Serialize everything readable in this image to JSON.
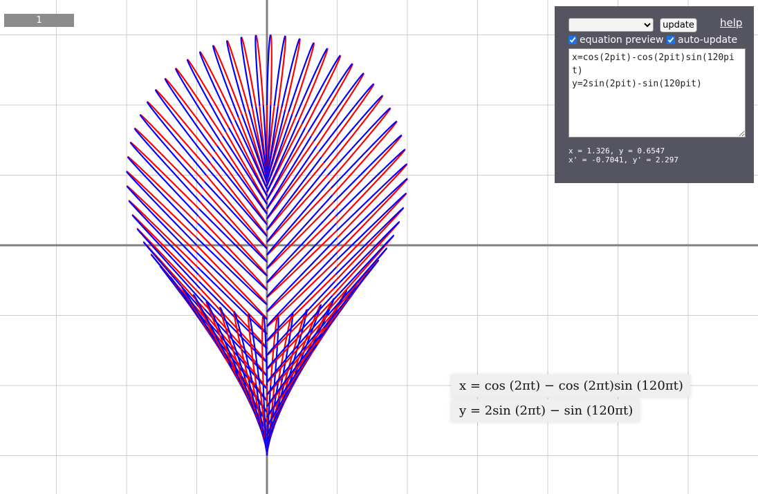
{
  "scale_label": "1",
  "panel": {
    "preset_selected": "",
    "update_label": "update",
    "help_label": "help",
    "equation_preview_label": "equation preview",
    "equation_preview_checked": true,
    "auto_update_label": "auto-update",
    "auto_update_checked": true,
    "equation_text": "x=cos(2pit)-cos(2pit)sin(120pit)\ny=2sin(2pit)-sin(120pit)",
    "coords_line1": "x = 1.326, y = 0.6547",
    "coords_line2": "x' = -0.7041, y' = 2.297"
  },
  "preview": {
    "x_equation": "x = cos (2πt) − cos (2πt)sin (120πt)",
    "y_equation": "y = 2sin (2πt) − sin (120πt)"
  },
  "chart_data": {
    "type": "line",
    "x_expr": "cos(2*pi*t) - cos(2*pi*t)*sin(120*pi*t)",
    "y_expr": "2*sin(2*pi*t) - sin(120*pi*t)",
    "t_range": [
      0,
      1
    ],
    "grid_step": 1,
    "grid": true,
    "xlim": [
      -3.8,
      7.0
    ],
    "ylim": [
      -3.5,
      3.5
    ],
    "colors": {
      "segment_a": "#ff0000",
      "segment_b": "#0000ff",
      "grid": "#cccccc",
      "axis": "#808080"
    }
  }
}
